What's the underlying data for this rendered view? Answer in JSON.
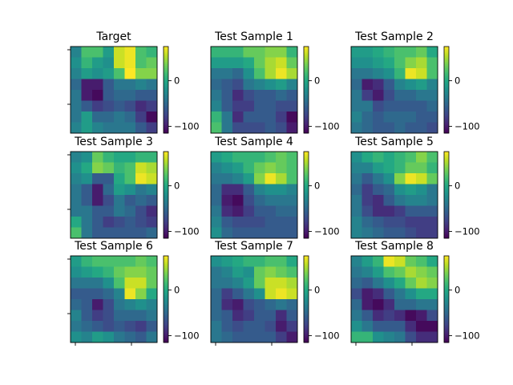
{
  "figure": {
    "background": "#ffffff"
  },
  "chart_data": {
    "type": "heatmap",
    "colormap": "viridis",
    "vmin": -115,
    "vmax": 75,
    "colorbar_ticks": [
      0,
      -100
    ],
    "colorbar_tick_labels": [
      "0",
      "−100"
    ],
    "grid": false,
    "panels": [
      {
        "title": "Target",
        "values": [
          [
            -30,
            20,
            20,
            -10,
            60,
            70,
            20,
            10
          ],
          [
            -20,
            10,
            -10,
            -20,
            60,
            70,
            20,
            30
          ],
          [
            -30,
            -10,
            -20,
            -10,
            20,
            75,
            40,
            40
          ],
          [
            -50,
            -100,
            -100,
            -60,
            -40,
            -40,
            -30,
            -40
          ],
          [
            -40,
            -100,
            -110,
            -60,
            -50,
            -50,
            -60,
            -60
          ],
          [
            -40,
            -60,
            -80,
            -70,
            -60,
            -70,
            -90,
            -80
          ],
          [
            -40,
            -10,
            -50,
            -50,
            -40,
            -50,
            -80,
            -110
          ],
          [
            -30,
            -10,
            -30,
            -40,
            -40,
            -40,
            -60,
            -80
          ]
        ]
      },
      {
        "title": "Test Sample 1",
        "values": [
          [
            10,
            10,
            10,
            30,
            30,
            40,
            40,
            10
          ],
          [
            -10,
            -10,
            -10,
            0,
            30,
            50,
            60,
            30
          ],
          [
            -40,
            -40,
            -50,
            -20,
            20,
            50,
            70,
            50
          ],
          [
            -50,
            -60,
            -70,
            -40,
            -30,
            -20,
            -10,
            -30
          ],
          [
            -40,
            -60,
            -90,
            -70,
            -60,
            -60,
            -50,
            -60
          ],
          [
            -30,
            -60,
            -80,
            -80,
            -60,
            -60,
            -70,
            -70
          ],
          [
            10,
            -40,
            -90,
            -60,
            -60,
            -60,
            -80,
            -110
          ],
          [
            20,
            -40,
            -70,
            -70,
            -70,
            -60,
            -70,
            -100
          ]
        ]
      },
      {
        "title": "Test Sample 2",
        "values": [
          [
            -10,
            -10,
            0,
            10,
            20,
            20,
            30,
            0
          ],
          [
            -20,
            -20,
            -10,
            0,
            20,
            40,
            50,
            20
          ],
          [
            -40,
            -40,
            -30,
            -20,
            10,
            70,
            60,
            20
          ],
          [
            -50,
            -100,
            -90,
            -60,
            -30,
            -20,
            -10,
            -30
          ],
          [
            -40,
            -80,
            -100,
            -70,
            -50,
            -50,
            -40,
            -40
          ],
          [
            -40,
            -40,
            -70,
            -60,
            -60,
            -60,
            -60,
            -50
          ],
          [
            -30,
            -50,
            -60,
            -50,
            -50,
            -50,
            -60,
            -60
          ],
          [
            -40,
            -50,
            -60,
            -60,
            -50,
            -60,
            -60,
            -70
          ]
        ]
      },
      {
        "title": "Test Sample 3",
        "values": [
          [
            -30,
            -20,
            30,
            10,
            0,
            0,
            10,
            10
          ],
          [
            -20,
            0,
            40,
            30,
            10,
            20,
            60,
            50
          ],
          [
            -30,
            -20,
            -60,
            -60,
            0,
            20,
            70,
            60
          ],
          [
            -40,
            -60,
            -100,
            -50,
            -10,
            -20,
            -40,
            -30
          ],
          [
            -40,
            -60,
            -100,
            -70,
            -40,
            -60,
            -50,
            -60
          ],
          [
            -40,
            -40,
            -60,
            -60,
            -40,
            -50,
            -70,
            -90
          ],
          [
            0,
            -40,
            -60,
            -80,
            -70,
            -60,
            -70,
            -80
          ],
          [
            20,
            -40,
            -60,
            -60,
            -60,
            -60,
            -60,
            -50
          ]
        ]
      },
      {
        "title": "Test Sample 4",
        "values": [
          [
            -10,
            0,
            10,
            10,
            10,
            20,
            30,
            20
          ],
          [
            -30,
            -20,
            -10,
            10,
            30,
            40,
            30,
            20
          ],
          [
            -40,
            -40,
            -30,
            -10,
            40,
            70,
            50,
            20
          ],
          [
            -50,
            -90,
            -90,
            -60,
            -30,
            -20,
            -20,
            -30
          ],
          [
            -50,
            -100,
            -110,
            -70,
            -50,
            -40,
            -40,
            -40
          ],
          [
            -40,
            -90,
            -100,
            -80,
            -60,
            -60,
            -50,
            -50
          ],
          [
            -30,
            -60,
            -70,
            -70,
            -70,
            -60,
            -60,
            -60
          ],
          [
            -20,
            -50,
            -60,
            -60,
            -60,
            -60,
            -60,
            -60
          ]
        ]
      },
      {
        "title": "Test Sample 5",
        "values": [
          [
            -20,
            0,
            10,
            0,
            10,
            20,
            40,
            20
          ],
          [
            -30,
            -30,
            -10,
            0,
            10,
            30,
            30,
            10
          ],
          [
            -40,
            -60,
            -40,
            -20,
            40,
            70,
            60,
            30
          ],
          [
            -50,
            -80,
            -60,
            -50,
            -20,
            -10,
            -20,
            -40
          ],
          [
            -40,
            -80,
            -90,
            -60,
            -40,
            -30,
            -30,
            -40
          ],
          [
            -40,
            -70,
            -90,
            -90,
            -80,
            -60,
            -60,
            -60
          ],
          [
            -30,
            -50,
            -60,
            -70,
            -70,
            -80,
            -80,
            -80
          ],
          [
            -30,
            -40,
            -50,
            -60,
            -60,
            -70,
            -80,
            -80
          ]
        ]
      },
      {
        "title": "Test Sample 6",
        "values": [
          [
            -10,
            10,
            20,
            20,
            20,
            20,
            30,
            20
          ],
          [
            -20,
            -10,
            0,
            10,
            30,
            40,
            40,
            30
          ],
          [
            -40,
            -40,
            -40,
            -20,
            20,
            60,
            60,
            30
          ],
          [
            -60,
            -60,
            -60,
            -50,
            -30,
            70,
            40,
            0
          ],
          [
            -50,
            -60,
            -100,
            -70,
            -40,
            -30,
            -20,
            -30
          ],
          [
            -30,
            -60,
            -80,
            -70,
            -50,
            -50,
            -50,
            -40
          ],
          [
            -40,
            -50,
            -60,
            -70,
            -60,
            -70,
            -80,
            -60
          ],
          [
            -20,
            -30,
            -10,
            -20,
            -40,
            -50,
            -60,
            -40
          ]
        ]
      },
      {
        "title": "Test Sample 7",
        "values": [
          [
            -20,
            -10,
            0,
            10,
            10,
            20,
            20,
            0
          ],
          [
            -40,
            -30,
            -10,
            -20,
            30,
            40,
            30,
            20
          ],
          [
            -40,
            -40,
            -30,
            -10,
            30,
            60,
            60,
            50
          ],
          [
            -50,
            -80,
            -60,
            -40,
            -20,
            60,
            70,
            60
          ],
          [
            -50,
            -90,
            -100,
            -70,
            -60,
            -50,
            -40,
            -50
          ],
          [
            -50,
            -60,
            -90,
            -80,
            -60,
            -60,
            -90,
            -60
          ],
          [
            -40,
            -60,
            -70,
            -60,
            -60,
            -70,
            -100,
            -80
          ],
          [
            -40,
            -50,
            -60,
            -60,
            -60,
            -60,
            -80,
            -100
          ]
        ]
      },
      {
        "title": "Test Sample 8",
        "values": [
          [
            -30,
            -10,
            10,
            70,
            60,
            30,
            20,
            0
          ],
          [
            -40,
            -30,
            -10,
            20,
            30,
            50,
            40,
            30
          ],
          [
            -50,
            -60,
            -40,
            -20,
            0,
            30,
            50,
            40
          ],
          [
            -70,
            -100,
            -90,
            -60,
            -40,
            -20,
            0,
            0
          ],
          [
            -50,
            -100,
            -110,
            -90,
            -50,
            -50,
            -40,
            -40
          ],
          [
            -40,
            -60,
            -90,
            -80,
            -90,
            -110,
            -100,
            -70
          ],
          [
            -20,
            -40,
            -60,
            -60,
            -60,
            -90,
            -110,
            -110
          ],
          [
            10,
            10,
            -20,
            -30,
            -40,
            -70,
            -90,
            -90
          ]
        ]
      }
    ]
  }
}
